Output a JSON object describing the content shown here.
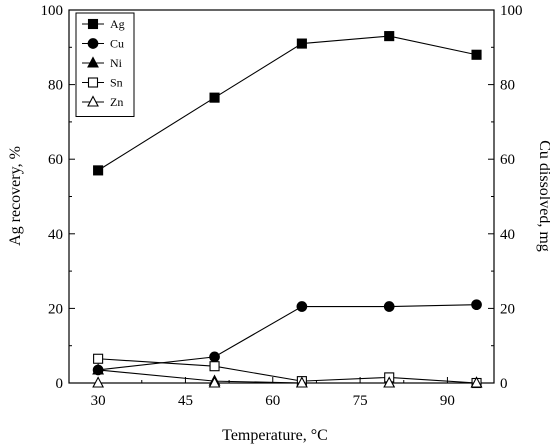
{
  "chart_data": {
    "type": "line",
    "x": [
      30,
      50,
      65,
      80,
      95
    ],
    "xlabel": "Temperature, °C",
    "ylabel_left": "Ag recovery, %",
    "ylabel_right": "Cu dissolved, mg",
    "xlim": [
      25,
      98
    ],
    "ylim_left": [
      0,
      100
    ],
    "ylim_right": [
      0,
      100
    ],
    "xticks": [
      30,
      45,
      60,
      75,
      90
    ],
    "yticks_left": [
      0,
      20,
      40,
      60,
      80,
      100
    ],
    "yticks_right": [
      0,
      20,
      40,
      60,
      80,
      100
    ],
    "legend_position": "top-left",
    "series": [
      {
        "name": "Ag",
        "marker": "filled-square",
        "axis": "left",
        "values": [
          57,
          76.5,
          91,
          93,
          88
        ]
      },
      {
        "name": "Cu",
        "marker": "filled-circle",
        "axis": "right",
        "values": [
          3.5,
          7,
          20.5,
          20.5,
          21
        ]
      },
      {
        "name": "Ni",
        "marker": "filled-triangle",
        "axis": "right",
        "values": [
          3.5,
          0.5,
          0,
          0,
          0
        ]
      },
      {
        "name": "Sn",
        "marker": "open-square",
        "axis": "right",
        "values": [
          6.5,
          4.5,
          0.5,
          1.5,
          0
        ]
      },
      {
        "name": "Zn",
        "marker": "open-triangle",
        "axis": "right",
        "values": [
          0,
          0,
          0,
          0,
          0
        ]
      }
    ]
  }
}
